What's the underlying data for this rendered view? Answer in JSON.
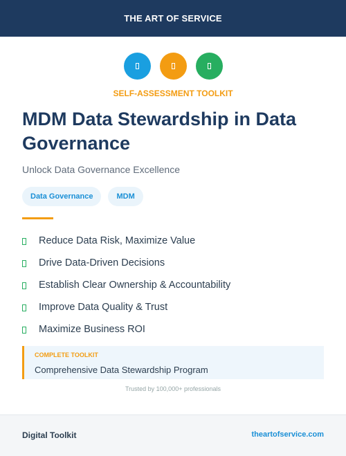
{
  "header": {
    "brand": "THE ART OF SERVICE"
  },
  "icons": [
    {
      "name": "toolkit-icon",
      "color": "#1a9fe0"
    },
    {
      "name": "assessment-icon",
      "color": "#f39c12"
    },
    {
      "name": "checklist-icon",
      "color": "#27ae60"
    }
  ],
  "kicker": "SELF-ASSESSMENT TOOLKIT",
  "title": "MDM Data Stewardship in Data Governance",
  "subtitle": "Unlock Data Governance Excellence",
  "tags": [
    "Data Governance",
    "MDM"
  ],
  "benefits": [
    "Reduce Data Risk, Maximize Value",
    "Drive Data-Driven Decisions",
    "Establish Clear Ownership & Accountability",
    "Improve Data Quality & Trust",
    "Maximize Business ROI"
  ],
  "toolkit": {
    "label": "COMPLETE TOOLKIT",
    "value": "Comprehensive Data Stewardship Program"
  },
  "trust": "Trusted by 100,000+ professionals",
  "footer": {
    "left": "Digital Toolkit",
    "right": "theartofservice.com"
  },
  "colors": {
    "navy": "#1e3a5f",
    "accent_orange": "#f39c12",
    "accent_blue": "#1a8fd6",
    "accent_green": "#27ae60"
  }
}
